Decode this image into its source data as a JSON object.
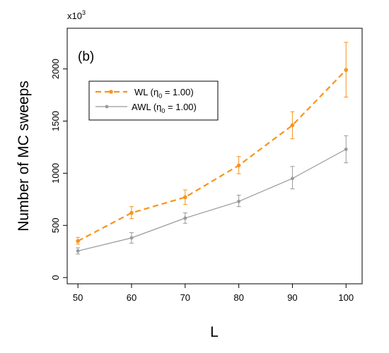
{
  "chart_data": {
    "type": "line",
    "panel_label": "(b)",
    "xlabel": "L",
    "ylabel": "Number of MC sweeps",
    "y_multiplier_base": "x10",
    "y_multiplier_exp": "3",
    "x": [
      50,
      60,
      70,
      80,
      90,
      100
    ],
    "xlim": [
      48,
      103
    ],
    "ylim": [
      -60,
      2390
    ],
    "x_ticks": [
      50,
      60,
      70,
      80,
      90,
      100
    ],
    "y_ticks": [
      0,
      500,
      1000,
      1500,
      2000
    ],
    "grid": false,
    "legend_placement": "top-left",
    "series": [
      {
        "name_prefix": "WL  (",
        "name_symbol": "η",
        "name_sub": "0",
        "name_suffix": " = 1.00)",
        "color": "#F7941D",
        "dashed": true,
        "values": [
          350,
          620,
          770,
          1075,
          1460,
          1990
        ],
        "err_low": [
          320,
          565,
          700,
          995,
          1330,
          1730
        ],
        "err_high": [
          385,
          680,
          840,
          1160,
          1590,
          2255
        ]
      },
      {
        "name_prefix": "AWL (",
        "name_symbol": "η",
        "name_sub": "0",
        "name_suffix": " = 1.00)",
        "color": "#999999",
        "dashed": false,
        "values": [
          255,
          380,
          570,
          730,
          950,
          1230
        ],
        "err_low": [
          225,
          330,
          520,
          680,
          850,
          1100
        ],
        "err_high": [
          285,
          430,
          620,
          790,
          1065,
          1360
        ]
      }
    ]
  }
}
